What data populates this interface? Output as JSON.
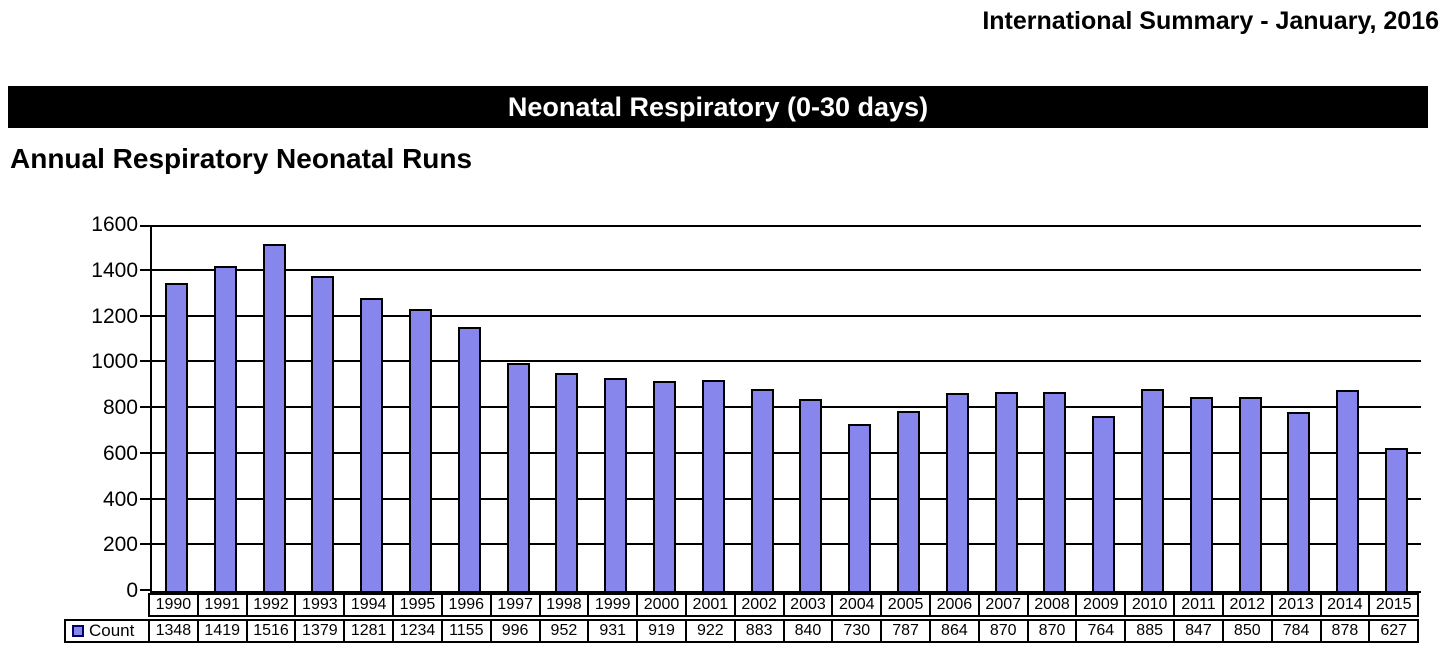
{
  "page_header": "International Summary - January, 2016",
  "banner_title": "Neonatal Respiratory (0-30 days)",
  "section_title": "Annual Respiratory Neonatal Runs",
  "legend_label": "Count",
  "colors": {
    "bar_fill": "#8686ec",
    "bar_border": "#000000",
    "banner_bg": "#000000",
    "banner_text": "#ffffff",
    "axis": "#000000"
  },
  "chart_data": {
    "type": "bar",
    "title": "Annual Respiratory Neonatal Runs",
    "xlabel": "",
    "ylabel": "",
    "categories": [
      "1990",
      "1991",
      "1992",
      "1993",
      "1994",
      "1995",
      "1996",
      "1997",
      "1998",
      "1999",
      "2000",
      "2001",
      "2002",
      "2003",
      "2004",
      "2005",
      "2006",
      "2007",
      "2008",
      "2009",
      "2010",
      "2011",
      "2012",
      "2013",
      "2014",
      "2015"
    ],
    "series": [
      {
        "name": "Count",
        "values": [
          1348,
          1419,
          1516,
          1379,
          1281,
          1234,
          1155,
          996,
          952,
          931,
          919,
          922,
          883,
          840,
          730,
          787,
          864,
          870,
          870,
          764,
          885,
          847,
          850,
          784,
          878,
          627
        ]
      }
    ],
    "ylim": [
      0,
      1600
    ],
    "yticks": [
      0,
      200,
      400,
      600,
      800,
      1000,
      1200,
      1400,
      1600
    ],
    "grid": true,
    "legend_position": "bottom-table"
  }
}
